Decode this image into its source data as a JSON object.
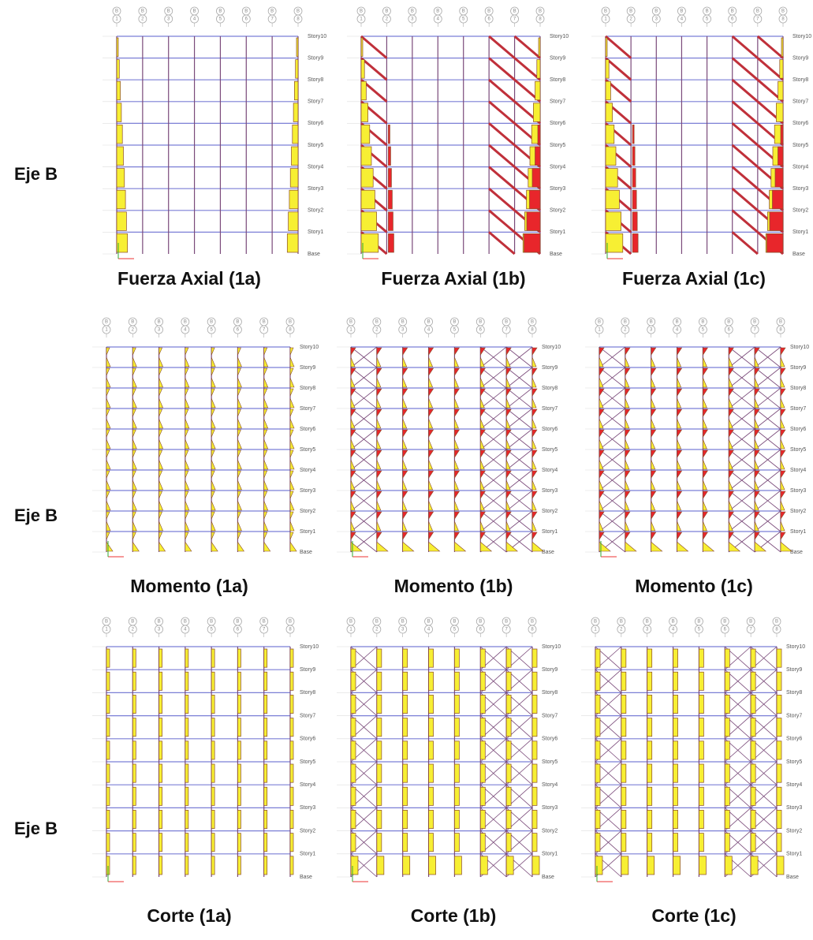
{
  "rows": [
    {
      "label": "Eje B",
      "panels": [
        {
          "caption": "Fuerza Axial (1a)"
        },
        {
          "caption": "Fuerza Axial (1b)"
        },
        {
          "caption": "Fuerza Axial (1c)"
        }
      ]
    },
    {
      "label": "Eje B",
      "panels": [
        {
          "caption": "Momento (1a)"
        },
        {
          "caption": "Momento (1b)"
        },
        {
          "caption": "Momento (1c)"
        }
      ]
    },
    {
      "label": "Eje B",
      "panels": [
        {
          "caption": "Corte (1a)"
        },
        {
          "caption": "Corte (1b)"
        },
        {
          "caption": "Corte (1c)"
        }
      ]
    }
  ],
  "story_labels": [
    "Base",
    "Story1",
    "Story2",
    "Story3",
    "Story4",
    "Story5",
    "Story6",
    "Story7",
    "Story8",
    "Story9",
    "Story10"
  ],
  "grid_line": "B",
  "grid_numbers": [
    "1",
    "2",
    "3",
    "4",
    "5",
    "6",
    "7",
    "8"
  ]
}
